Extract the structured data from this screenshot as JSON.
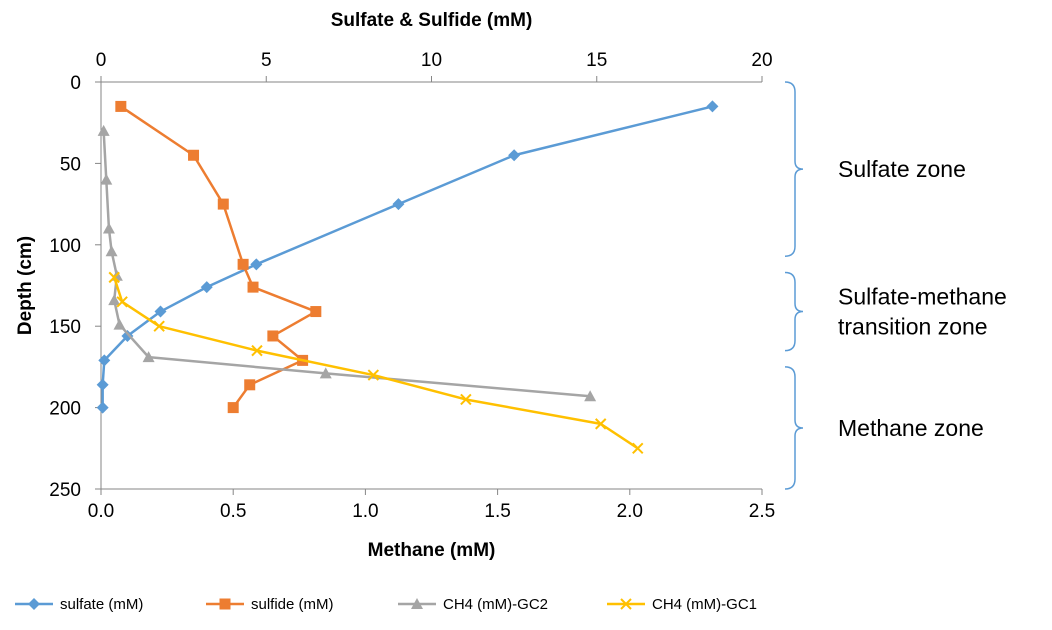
{
  "colors": {
    "sulfate": "#5B9BD5",
    "sulfide": "#ED7D31",
    "ch4_gc2": "#A5A5A5",
    "ch4_gc1": "#FFC000",
    "axis": "#868686",
    "brace": "#5B9BD5"
  },
  "chart_data": {
    "type": "line",
    "orientation": "depth-profile",
    "x_top": {
      "label": "Sulfate & Sulfide (mM)",
      "range": [
        0,
        20
      ],
      "ticks": [
        "0",
        "5",
        "10",
        "15",
        "20"
      ]
    },
    "x_bottom": {
      "label": "Methane (mM)",
      "range": [
        0,
        2.5
      ],
      "ticks": [
        "0.0",
        "0.5",
        "1.0",
        "1.5",
        "2.0",
        "2.5"
      ]
    },
    "y": {
      "label": "Depth (cm)",
      "range": [
        0,
        250
      ],
      "inverted": true,
      "ticks": [
        "0",
        "50",
        "100",
        "150",
        "200",
        "250"
      ]
    },
    "grid": false,
    "legend_position": "bottom",
    "series": [
      {
        "name": "sulfate (mM)",
        "axis": "top",
        "marker": "diamond",
        "color_key": "sulfate",
        "points": [
          [
            18.5,
            15
          ],
          [
            12.5,
            45
          ],
          [
            9.0,
            75
          ],
          [
            4.7,
            112
          ],
          [
            3.2,
            126
          ],
          [
            1.8,
            141
          ],
          [
            0.8,
            156
          ],
          [
            0.1,
            171
          ],
          [
            0.05,
            186
          ],
          [
            0.05,
            200
          ]
        ]
      },
      {
        "name": "sulfide (mM)",
        "axis": "top",
        "marker": "square",
        "color_key": "sulfide",
        "points": [
          [
            0.6,
            15
          ],
          [
            2.8,
            45
          ],
          [
            3.7,
            75
          ],
          [
            4.3,
            112
          ],
          [
            4.6,
            126
          ],
          [
            6.5,
            141
          ],
          [
            5.2,
            156
          ],
          [
            6.1,
            171
          ],
          [
            4.5,
            186
          ],
          [
            4.0,
            200
          ]
        ]
      },
      {
        "name": "CH4 (mM)-GC2",
        "axis": "bottom",
        "marker": "triangle",
        "color_key": "ch4_gc2",
        "points": [
          [
            0.01,
            30
          ],
          [
            0.02,
            60
          ],
          [
            0.03,
            90
          ],
          [
            0.04,
            104
          ],
          [
            0.06,
            119
          ],
          [
            0.05,
            134
          ],
          [
            0.07,
            149
          ],
          [
            0.18,
            169
          ],
          [
            0.85,
            179
          ],
          [
            1.85,
            193
          ]
        ]
      },
      {
        "name": "CH4 (mM)-GC1",
        "axis": "bottom",
        "marker": "x",
        "color_key": "ch4_gc1",
        "points": [
          [
            0.05,
            120
          ],
          [
            0.08,
            135
          ],
          [
            0.22,
            150
          ],
          [
            0.59,
            165
          ],
          [
            1.03,
            180
          ],
          [
            1.38,
            195
          ],
          [
            1.89,
            210
          ],
          [
            2.03,
            225
          ]
        ]
      }
    ],
    "annotations": [
      {
        "text": [
          "Sulfate zone"
        ],
        "depth_range": [
          0,
          107
        ]
      },
      {
        "text": [
          "Sulfate-methane",
          "transition zone"
        ],
        "depth_range": [
          117,
          165
        ]
      },
      {
        "text": [
          "Methane zone"
        ],
        "depth_range": [
          175,
          250
        ]
      }
    ]
  }
}
